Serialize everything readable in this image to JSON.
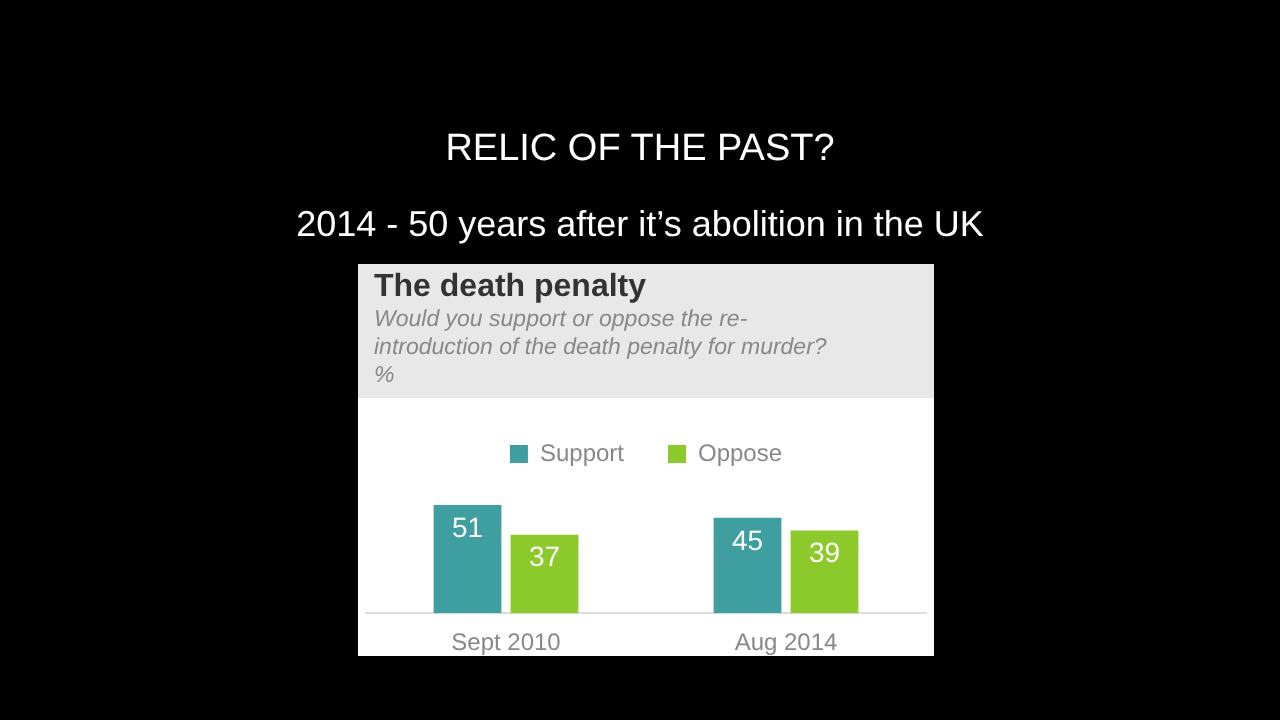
{
  "chart_data": {
    "type": "bar",
    "title": "The death penalty",
    "subtitle": "Would you support or oppose the re-introduction of the death penalty for murder? %",
    "annotations": [
      "RELIC OF THE PAST?",
      "2014 - 50 years after it’s abolition in the UK"
    ],
    "categories": [
      "Sept 2010",
      "Aug 2014"
    ],
    "series": [
      {
        "name": "Support",
        "color": "#3f9ea0",
        "values": [
          51,
          45
        ]
      },
      {
        "name": "Oppose",
        "color": "#8cc92a",
        "values": [
          37,
          39
        ]
      }
    ],
    "data_labels": true,
    "legend": "top",
    "grid": false
  }
}
